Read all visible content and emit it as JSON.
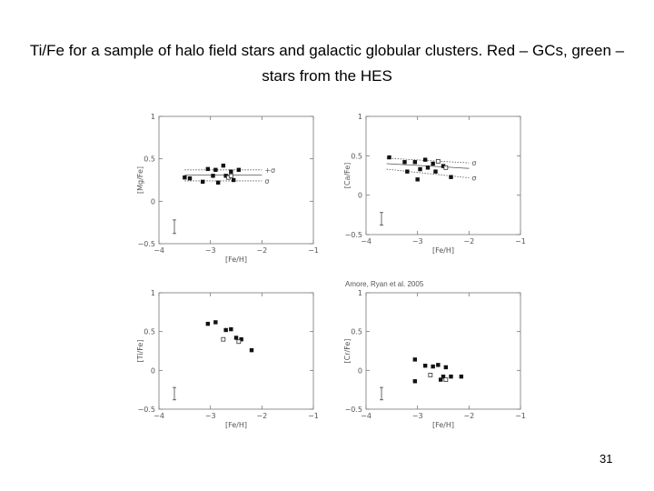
{
  "slide": {
    "title": "Ti/Fe for a sample of halo field stars and galactic globular clusters.  Red – GCs, green – stars from the HES",
    "credit": "Amore, Ryan et al. 2005",
    "page_number": "31"
  },
  "chart_data": [
    {
      "type": "scatter",
      "xlabel": "[Fe/H]",
      "ylabel": "[Mg/Fe]",
      "xlim": [
        -4,
        -1
      ],
      "ylim": [
        -0.5,
        1
      ],
      "xticks": [
        -4,
        -3,
        -2,
        -1
      ],
      "yticks": [
        -0.5,
        0,
        0.5,
        1
      ],
      "series": [
        {
          "marker": "filled-square",
          "points": [
            [
              -3.5,
              0.28
            ],
            [
              -3.4,
              0.27
            ],
            [
              -3.15,
              0.23
            ],
            [
              -3.05,
              0.38
            ],
            [
              -2.95,
              0.3
            ],
            [
              -2.9,
              0.37
            ],
            [
              -2.85,
              0.22
            ],
            [
              -2.75,
              0.42
            ],
            [
              -2.7,
              0.3
            ],
            [
              -2.6,
              0.35
            ],
            [
              -2.55,
              0.25
            ],
            [
              -2.45,
              0.37
            ]
          ]
        },
        {
          "marker": "open-square",
          "points": [
            [
              -2.65,
              0.28
            ],
            [
              -2.6,
              0.3
            ]
          ]
        }
      ],
      "error_bar": {
        "x": -3.7,
        "y": -0.3,
        "dy": 0.08
      },
      "bands": [
        {
          "label": "+σ",
          "y": [
            0.37,
            0.37
          ],
          "style": "dotted",
          "x": [
            -3.5,
            -2.0
          ]
        },
        {
          "label": "",
          "y": [
            0.31,
            0.31
          ],
          "style": "solid",
          "x": [
            -3.5,
            -2.0
          ]
        },
        {
          "label": "σ",
          "y": [
            0.24,
            0.24
          ],
          "style": "dotted",
          "x": [
            -3.5,
            -2.0
          ]
        }
      ]
    },
    {
      "type": "scatter",
      "xlabel": "[Fe/H]",
      "ylabel": "[Ca/Fe]",
      "xlim": [
        -4,
        -1
      ],
      "ylim": [
        -0.5,
        1
      ],
      "xticks": [
        -4,
        -3,
        -2,
        -1
      ],
      "yticks": [
        -0.5,
        0,
        0.5,
        1
      ],
      "series": [
        {
          "marker": "filled-square",
          "points": [
            [
              -3.55,
              0.48
            ],
            [
              -3.25,
              0.42
            ],
            [
              -3.2,
              0.3
            ],
            [
              -3.05,
              0.42
            ],
            [
              -3.0,
              0.2
            ],
            [
              -2.95,
              0.33
            ],
            [
              -2.85,
              0.45
            ],
            [
              -2.8,
              0.35
            ],
            [
              -2.7,
              0.4
            ],
            [
              -2.65,
              0.3
            ],
            [
              -2.5,
              0.37
            ],
            [
              -2.35,
              0.23
            ]
          ]
        },
        {
          "marker": "open-square",
          "points": [
            [
              -2.6,
              0.43
            ],
            [
              -2.45,
              0.35
            ]
          ]
        }
      ],
      "error_bar": {
        "x": -3.7,
        "y": -0.3,
        "dy": 0.08
      },
      "bands": [
        {
          "label": "σ",
          "y": [
            0.47,
            0.41
          ],
          "style": "dotted",
          "x": [
            -3.6,
            -2.0
          ]
        },
        {
          "label": "",
          "y": [
            0.4,
            0.34
          ],
          "style": "solid",
          "x": [
            -3.6,
            -2.0
          ]
        },
        {
          "label": "σ",
          "y": [
            0.33,
            0.22
          ],
          "style": "dotted",
          "x": [
            -3.6,
            -2.0
          ]
        }
      ]
    },
    {
      "type": "scatter",
      "xlabel": "[Fe/H]",
      "ylabel": "[Ti/Fe]",
      "xlim": [
        -4,
        -1
      ],
      "ylim": [
        -0.5,
        1
      ],
      "xticks": [
        -4,
        -3,
        -2,
        -1
      ],
      "yticks": [
        -0.5,
        0,
        0.5,
        1
      ],
      "series": [
        {
          "marker": "filled-square",
          "points": [
            [
              -3.05,
              0.6
            ],
            [
              -2.9,
              0.62
            ],
            [
              -2.7,
              0.52
            ],
            [
              -2.6,
              0.53
            ],
            [
              -2.5,
              0.42
            ],
            [
              -2.4,
              0.4
            ],
            [
              -2.2,
              0.26
            ]
          ]
        },
        {
          "marker": "open-square",
          "points": [
            [
              -2.75,
              0.4
            ],
            [
              -2.45,
              0.37
            ]
          ]
        }
      ],
      "error_bar": {
        "x": -3.7,
        "y": -0.3,
        "dy": 0.08
      },
      "bands": []
    },
    {
      "type": "scatter",
      "xlabel": "[Fe/H]",
      "ylabel": "[Cr/Fe]",
      "xlim": [
        -4,
        -1
      ],
      "ylim": [
        -0.5,
        1
      ],
      "xticks": [
        -4,
        -3,
        -2,
        -1
      ],
      "yticks": [
        -0.5,
        0,
        0.5,
        1
      ],
      "series": [
        {
          "marker": "filled-square",
          "points": [
            [
              -3.05,
              0.14
            ],
            [
              -2.85,
              0.06
            ],
            [
              -2.7,
              0.05
            ],
            [
              -2.6,
              0.07
            ],
            [
              -2.55,
              -0.12
            ],
            [
              -2.5,
              -0.08
            ],
            [
              -2.45,
              0.04
            ],
            [
              -2.35,
              -0.08
            ],
            [
              -2.15,
              -0.08
            ],
            [
              -3.05,
              -0.14
            ]
          ]
        },
        {
          "marker": "open-square",
          "points": [
            [
              -2.75,
              -0.06
            ],
            [
              -2.45,
              -0.12
            ]
          ]
        }
      ],
      "error_bar": {
        "x": -3.7,
        "y": -0.3,
        "dy": 0.08
      },
      "bands": []
    }
  ]
}
